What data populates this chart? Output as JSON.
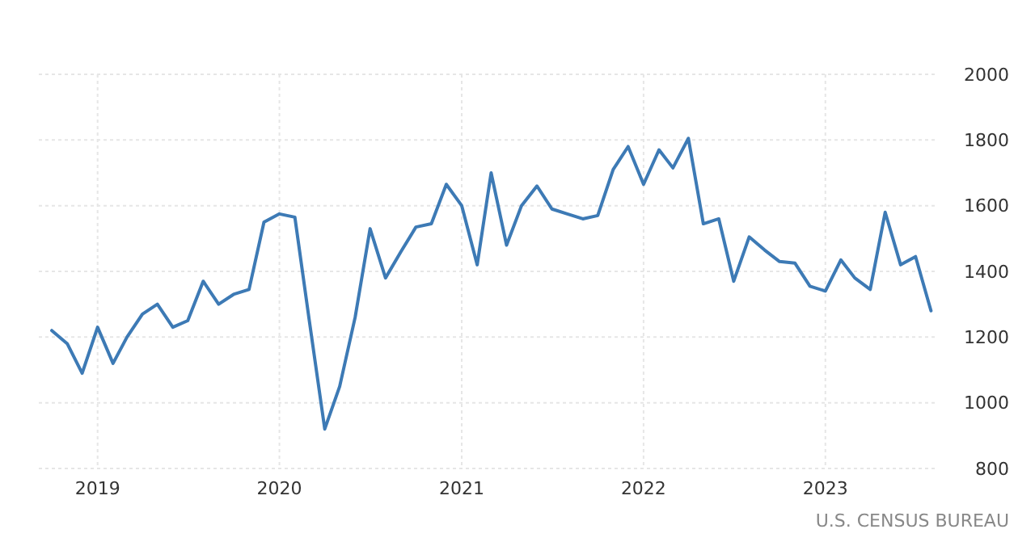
{
  "chart_data": {
    "type": "line",
    "x": [
      "2018-10",
      "2018-11",
      "2018-12",
      "2019-01",
      "2019-02",
      "2019-03",
      "2019-04",
      "2019-05",
      "2019-06",
      "2019-07",
      "2019-08",
      "2019-09",
      "2019-10",
      "2019-11",
      "2019-12",
      "2020-01",
      "2020-02",
      "2020-03",
      "2020-04",
      "2020-05",
      "2020-06",
      "2020-07",
      "2020-08",
      "2020-09",
      "2020-10",
      "2020-11",
      "2020-12",
      "2021-01",
      "2021-02",
      "2021-03",
      "2021-04",
      "2021-05",
      "2021-06",
      "2021-07",
      "2021-08",
      "2021-09",
      "2021-10",
      "2021-11",
      "2021-12",
      "2022-01",
      "2022-02",
      "2022-03",
      "2022-04",
      "2022-05",
      "2022-06",
      "2022-07",
      "2022-08",
      "2022-09",
      "2022-10",
      "2022-11",
      "2022-12",
      "2023-01",
      "2023-02",
      "2023-03",
      "2023-04",
      "2023-05",
      "2023-06",
      "2023-07",
      "2023-08"
    ],
    "series": [
      {
        "color": "#3d7ab5",
        "values": [
          1220,
          1180,
          1090,
          1230,
          1120,
          1200,
          1270,
          1300,
          1230,
          1250,
          1370,
          1300,
          1330,
          1345,
          1550,
          1575,
          1565,
          1250,
          920,
          1050,
          1260,
          1530,
          1380,
          1460,
          1535,
          1545,
          1665,
          1600,
          1420,
          1700,
          1480,
          1600,
          1660,
          1590,
          1575,
          1560,
          1570,
          1710,
          1780,
          1665,
          1770,
          1715,
          1805,
          1545,
          1560,
          1370,
          1505,
          1465,
          1430,
          1425,
          1355,
          1340,
          1435,
          1380,
          1345,
          1580,
          1420,
          1445,
          1280
        ]
      }
    ],
    "xlim": [
      "2018-09-05",
      "2023-08-15"
    ],
    "xticks": [
      {
        "value": "2019-01",
        "label": "2019"
      },
      {
        "value": "2020-01",
        "label": "2020"
      },
      {
        "value": "2021-01",
        "label": "2021"
      },
      {
        "value": "2022-01",
        "label": "2022"
      },
      {
        "value": "2023-01",
        "label": "2023"
      }
    ],
    "ylim": [
      800,
      2000
    ],
    "yticks": [
      800,
      1000,
      1200,
      1400,
      1600,
      1800,
      2000
    ],
    "grid": true,
    "line_style": "solid",
    "marker": "none",
    "annotations": [
      "U.S. CENSUS BUREAU"
    ]
  }
}
